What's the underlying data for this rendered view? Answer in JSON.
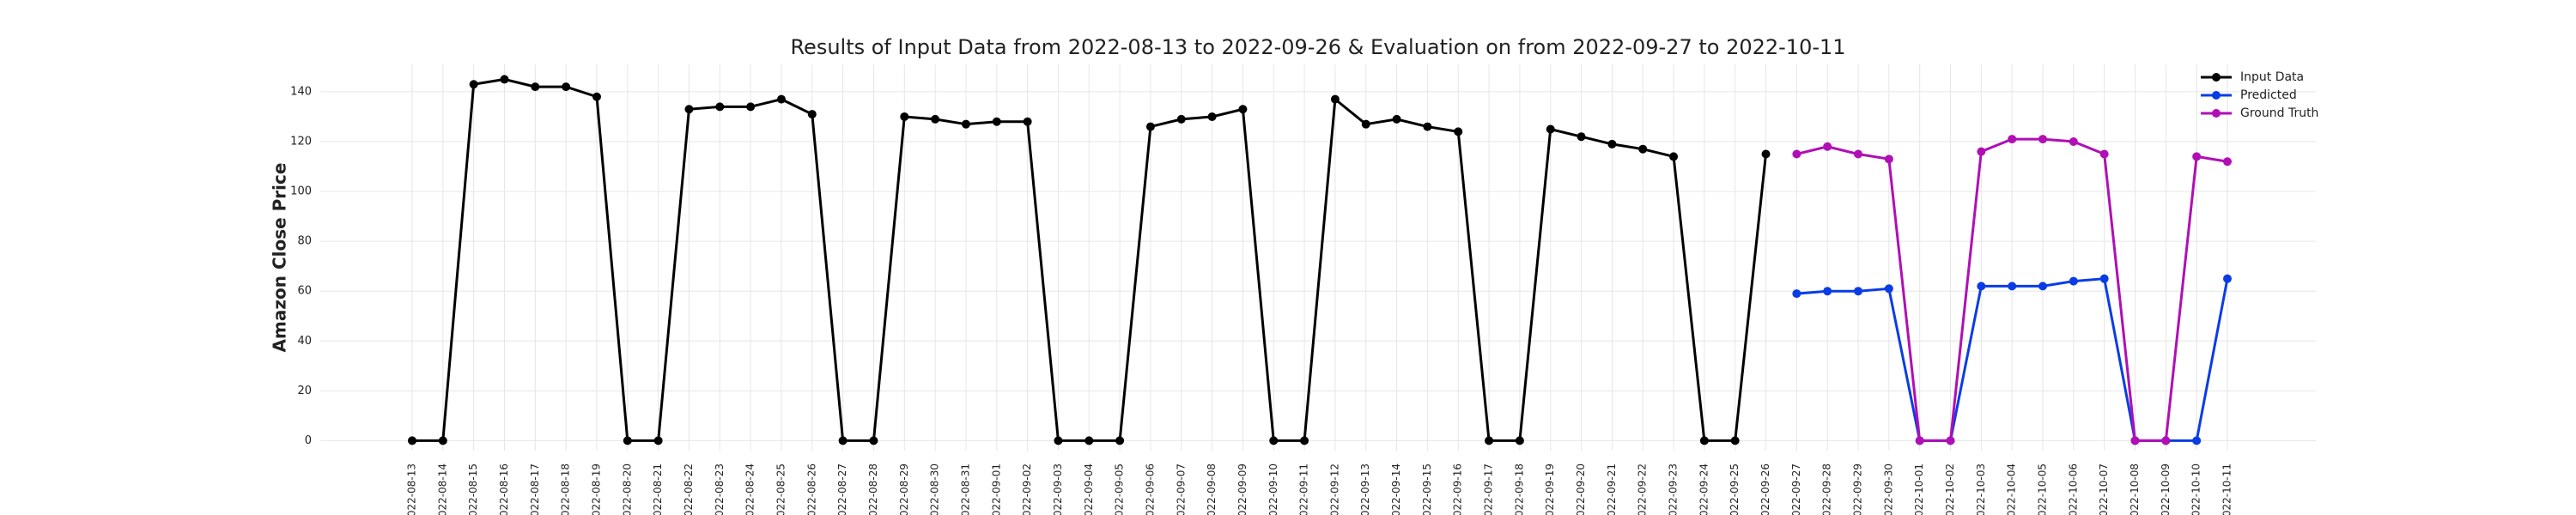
{
  "chart_data": {
    "type": "line",
    "title": "Results of Input Data from 2022-08-13 to 2022-09-26 & Evaluation on from 2022-09-27 to 2022-10-11",
    "ylabel": "Amazon Close Price",
    "categories": [
      "2022-08-13",
      "2022-08-14",
      "2022-08-15",
      "2022-08-16",
      "2022-08-17",
      "2022-08-18",
      "2022-08-19",
      "2022-08-20",
      "2022-08-21",
      "2022-08-22",
      "2022-08-23",
      "2022-08-24",
      "2022-08-25",
      "2022-08-26",
      "2022-08-27",
      "2022-08-28",
      "2022-08-29",
      "2022-08-30",
      "2022-08-31",
      "2022-09-01",
      "2022-09-02",
      "2022-09-03",
      "2022-09-04",
      "2022-09-05",
      "2022-09-06",
      "2022-09-07",
      "2022-09-08",
      "2022-09-09",
      "2022-09-10",
      "2022-09-11",
      "2022-09-12",
      "2022-09-13",
      "2022-09-14",
      "2022-09-15",
      "2022-09-16",
      "2022-09-17",
      "2022-09-18",
      "2022-09-19",
      "2022-09-20",
      "2022-09-21",
      "2022-09-22",
      "2022-09-23",
      "2022-09-24",
      "2022-09-25",
      "2022-09-26",
      "2022-09-27",
      "2022-09-28",
      "2022-09-29",
      "2022-09-30",
      "2022-10-01",
      "2022-10-02",
      "2022-10-03",
      "2022-10-04",
      "2022-10-05",
      "2022-10-06",
      "2022-10-07",
      "2022-10-08",
      "2022-10-09",
      "2022-10-10",
      "2022-10-11"
    ],
    "series": [
      {
        "name": "Input Data",
        "color": "#000000",
        "values": [
          0,
          0,
          143,
          145,
          142,
          142,
          138,
          0,
          0,
          133,
          134,
          134,
          137,
          131,
          0,
          0,
          130,
          129,
          127,
          128,
          128,
          0,
          0,
          0,
          126,
          129,
          130,
          133,
          0,
          0,
          137,
          127,
          129,
          126,
          124,
          0,
          0,
          125,
          122,
          119,
          117,
          114,
          0,
          0,
          115,
          null,
          null,
          null,
          null,
          null,
          null,
          null,
          null,
          null,
          null,
          null,
          null,
          null,
          null,
          null
        ]
      },
      {
        "name": "Predicted",
        "color": "#0a3ce6",
        "values": [
          null,
          null,
          null,
          null,
          null,
          null,
          null,
          null,
          null,
          null,
          null,
          null,
          null,
          null,
          null,
          null,
          null,
          null,
          null,
          null,
          null,
          null,
          null,
          null,
          null,
          null,
          null,
          null,
          null,
          null,
          null,
          null,
          null,
          null,
          null,
          null,
          null,
          null,
          null,
          null,
          null,
          null,
          null,
          null,
          null,
          59,
          60,
          60,
          61,
          0,
          0,
          62,
          62,
          62,
          64,
          65,
          0,
          0,
          0,
          65
        ]
      },
      {
        "name": "Ground Truth",
        "color": "#b00fb5",
        "values": [
          null,
          null,
          null,
          null,
          null,
          null,
          null,
          null,
          null,
          null,
          null,
          null,
          null,
          null,
          null,
          null,
          null,
          null,
          null,
          null,
          null,
          null,
          null,
          null,
          null,
          null,
          null,
          null,
          null,
          null,
          null,
          null,
          null,
          null,
          null,
          null,
          null,
          null,
          null,
          null,
          null,
          null,
          null,
          null,
          null,
          115,
          118,
          115,
          113,
          0,
          0,
          116,
          121,
          121,
          120,
          115,
          0,
          0,
          114,
          112
        ]
      }
    ],
    "ylim": [
      -4,
      151
    ],
    "yticks": [
      0,
      20,
      40,
      60,
      80,
      100,
      120,
      140
    ],
    "grid": true,
    "legend": "upper right"
  }
}
